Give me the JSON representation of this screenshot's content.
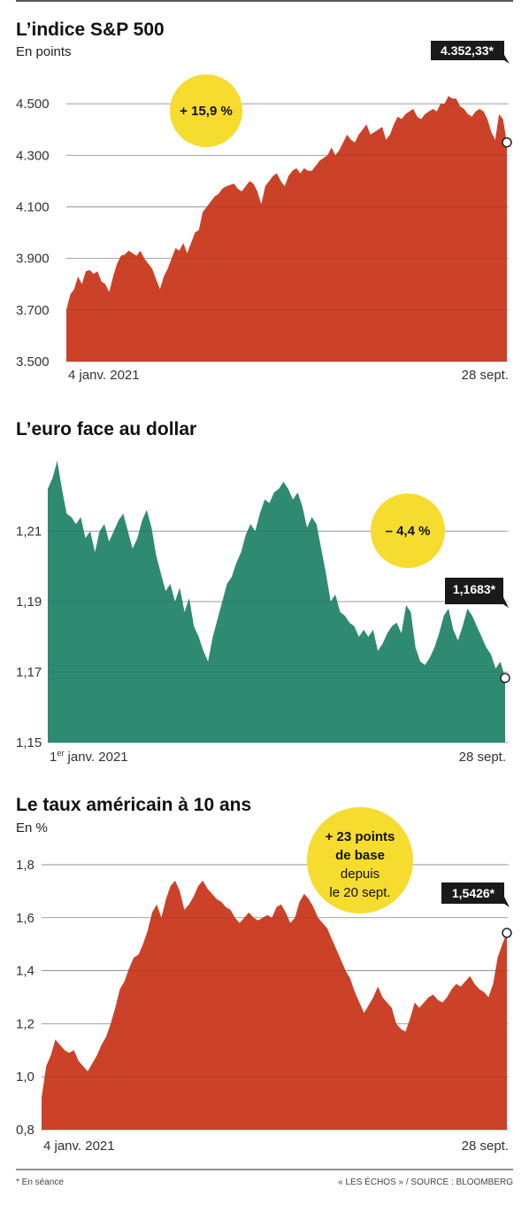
{
  "colors": {
    "red": "#cc4229",
    "teal": "#2f8a72",
    "bubble": "#f5dc2e",
    "tag_bg": "#1a1a1a",
    "grid": "#9a9a9a"
  },
  "footer": {
    "note": "* En séance",
    "source": "« LES ÉCHOS » / SOURCE : BLOOMBERG"
  },
  "chart_data": [
    {
      "type": "area",
      "title": "L’indice S&P 500",
      "subtitle": "En points",
      "x_start_label": "4 janv. 2021",
      "x_end_label": "28 sept.",
      "ylim": [
        3500,
        4600
      ],
      "y_ticks": [
        3500,
        3700,
        3900,
        4100,
        4300,
        4500
      ],
      "y_tick_labels": [
        "3.500",
        "3.700",
        "3.900",
        "4.100",
        "4.300",
        "4.500"
      ],
      "last_value_label": "4.352,33*",
      "annotation": "+ 15,9 %",
      "color": "red",
      "values": [
        3700,
        3760,
        3780,
        3830,
        3800,
        3850,
        3855,
        3840,
        3850,
        3810,
        3800,
        3770,
        3830,
        3880,
        3910,
        3915,
        3930,
        3920,
        3910,
        3930,
        3900,
        3880,
        3860,
        3820,
        3780,
        3830,
        3860,
        3900,
        3940,
        3930,
        3960,
        3920,
        3960,
        4000,
        4010,
        4080,
        4100,
        4120,
        4140,
        4150,
        4170,
        4180,
        4185,
        4190,
        4170,
        4160,
        4180,
        4200,
        4190,
        4160,
        4110,
        4180,
        4200,
        4220,
        4230,
        4200,
        4180,
        4220,
        4240,
        4250,
        4230,
        4250,
        4240,
        4240,
        4260,
        4280,
        4290,
        4300,
        4330,
        4300,
        4320,
        4350,
        4380,
        4360,
        4350,
        4380,
        4400,
        4420,
        4380,
        4390,
        4400,
        4410,
        4360,
        4380,
        4420,
        4450,
        4440,
        4460,
        4470,
        4480,
        4450,
        4440,
        4460,
        4470,
        4480,
        4470,
        4500,
        4500,
        4530,
        4520,
        4520,
        4490,
        4480,
        4460,
        4450,
        4470,
        4480,
        4470,
        4440,
        4390,
        4360,
        4460,
        4440,
        4350
      ]
    },
    {
      "type": "area",
      "title": "L’euro face au dollar",
      "subtitle": "",
      "x_start_label": "1er janv. 2021",
      "x_start_main": "1",
      "x_start_sup": "er",
      "x_start_rest": " janv. 2021",
      "x_end_label": "28 sept.",
      "ylim": [
        1.15,
        1.232
      ],
      "y_ticks": [
        1.15,
        1.17,
        1.19,
        1.21
      ],
      "y_tick_labels": [
        "1,15",
        "1,17",
        "1,19",
        "1,21"
      ],
      "last_value_label": "1,1683*",
      "annotation": "– 4,4 %",
      "color": "teal",
      "values": [
        1.222,
        1.225,
        1.23,
        1.222,
        1.215,
        1.214,
        1.212,
        1.214,
        1.208,
        1.21,
        1.204,
        1.21,
        1.212,
        1.207,
        1.21,
        1.213,
        1.215,
        1.21,
        1.205,
        1.208,
        1.213,
        1.216,
        1.211,
        1.203,
        1.198,
        1.193,
        1.195,
        1.19,
        1.194,
        1.187,
        1.191,
        1.183,
        1.18,
        1.176,
        1.173,
        1.18,
        1.185,
        1.19,
        1.195,
        1.197,
        1.201,
        1.204,
        1.209,
        1.212,
        1.21,
        1.215,
        1.219,
        1.218,
        1.221,
        1.222,
        1.224,
        1.222,
        1.219,
        1.221,
        1.217,
        1.211,
        1.214,
        1.212,
        1.205,
        1.198,
        1.19,
        1.192,
        1.187,
        1.186,
        1.184,
        1.183,
        1.18,
        1.182,
        1.18,
        1.182,
        1.176,
        1.178,
        1.181,
        1.183,
        1.184,
        1.181,
        1.189,
        1.187,
        1.177,
        1.173,
        1.172,
        1.174,
        1.177,
        1.181,
        1.186,
        1.188,
        1.182,
        1.179,
        1.183,
        1.188,
        1.186,
        1.183,
        1.18,
        1.177,
        1.175,
        1.171,
        1.173,
        1.1683
      ]
    },
    {
      "type": "area",
      "title": "Le taux américain à 10 ans",
      "subtitle": "En %",
      "x_start_label": "4 janv. 2021",
      "x_end_label": "28 sept.",
      "ylim": [
        0.8,
        1.85
      ],
      "y_ticks": [
        0.8,
        1.0,
        1.2,
        1.4,
        1.6,
        1.8
      ],
      "y_tick_labels": [
        "0,8",
        "1,0",
        "1,2",
        "1,4",
        "1,6",
        "1,8"
      ],
      "last_value_label": "1,5426*",
      "annotation_lines": [
        "+ 23 points",
        "de base",
        "depuis",
        "le 20 sept."
      ],
      "color": "red",
      "values": [
        0.92,
        1.04,
        1.08,
        1.14,
        1.12,
        1.1,
        1.09,
        1.1,
        1.06,
        1.04,
        1.02,
        1.05,
        1.08,
        1.12,
        1.15,
        1.2,
        1.26,
        1.33,
        1.36,
        1.41,
        1.45,
        1.46,
        1.5,
        1.55,
        1.62,
        1.65,
        1.6,
        1.67,
        1.72,
        1.74,
        1.7,
        1.63,
        1.65,
        1.68,
        1.72,
        1.74,
        1.71,
        1.69,
        1.67,
        1.66,
        1.64,
        1.63,
        1.6,
        1.58,
        1.6,
        1.62,
        1.6,
        1.59,
        1.6,
        1.61,
        1.6,
        1.64,
        1.65,
        1.62,
        1.58,
        1.6,
        1.66,
        1.69,
        1.67,
        1.64,
        1.6,
        1.58,
        1.56,
        1.52,
        1.48,
        1.44,
        1.4,
        1.37,
        1.32,
        1.28,
        1.24,
        1.27,
        1.3,
        1.34,
        1.3,
        1.28,
        1.26,
        1.2,
        1.18,
        1.17,
        1.22,
        1.28,
        1.26,
        1.28,
        1.3,
        1.31,
        1.29,
        1.28,
        1.3,
        1.33,
        1.35,
        1.34,
        1.36,
        1.38,
        1.35,
        1.33,
        1.32,
        1.3,
        1.35,
        1.45,
        1.5,
        1.5426
      ]
    }
  ]
}
